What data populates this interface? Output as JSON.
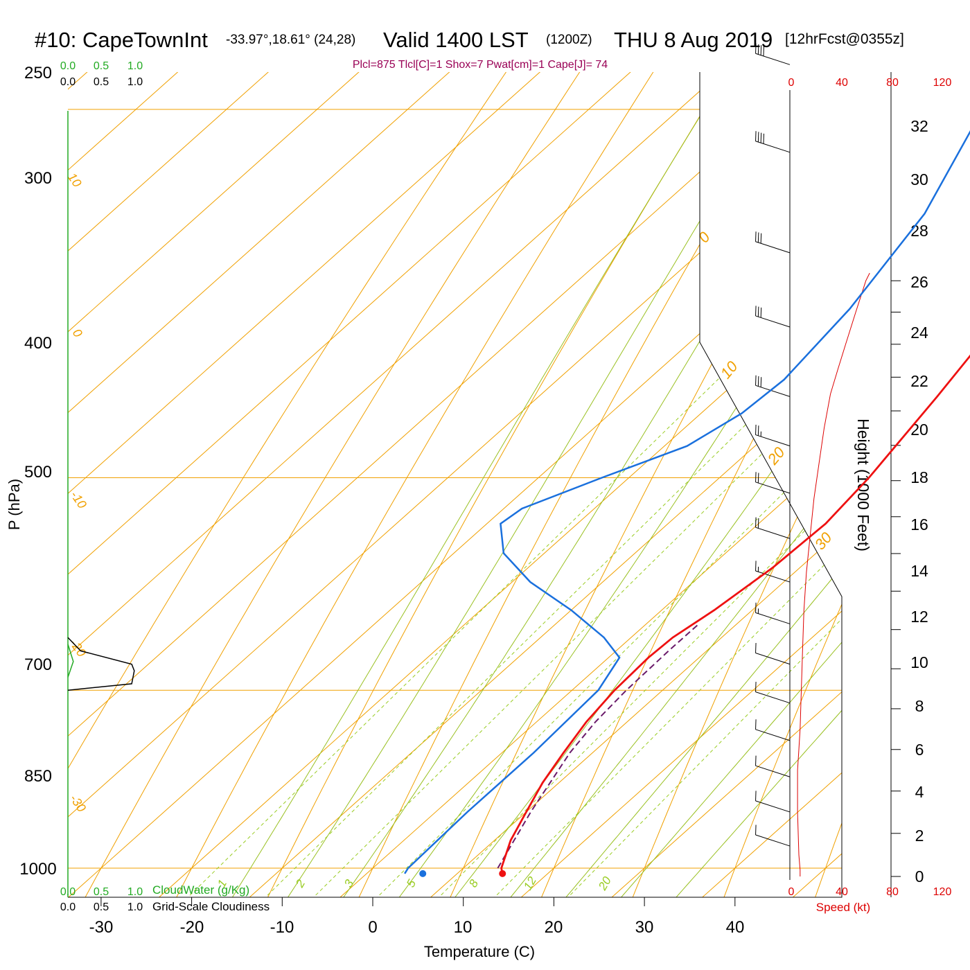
{
  "chart_data": {
    "type": "skew-t",
    "title": {
      "station": "#10: CapeTownInt",
      "coords": "-33.97°,18.61° (24,28)",
      "valid": "Valid 1400 LST",
      "utc": "(1200Z)",
      "date": "THU 8 Aug 2019",
      "forecast": "[12hrFcst@0355z]"
    },
    "indices": "Plcl=875 Tlcl[C]=1 Shox=7 Pwat[cm]=1 Cape[J]= 74",
    "xlabel": "Temperature (C)",
    "ylabel": "P (hPa)",
    "height_label": "Height (1000 Feet)",
    "speed_label": "Speed (kt)",
    "cloud_water_label": "CloudWater (g/Kg)",
    "cloudiness_label": "Grid-Scale Cloudiness",
    "pressure_ticks": [
      "250",
      "300",
      "400",
      "500",
      "700",
      "850",
      "1000"
    ],
    "temp_ticks": [
      "-30",
      "-20",
      "-10",
      "0",
      "10",
      "20",
      "30",
      "40"
    ],
    "height_ticks": [
      "0",
      "2",
      "4",
      "6",
      "8",
      "10",
      "12",
      "14",
      "16",
      "18",
      "20",
      "22",
      "24",
      "26",
      "28",
      "30",
      "32"
    ],
    "speed_ticks": [
      "0",
      "40",
      "80",
      "120"
    ],
    "cloud_ticks": [
      "0.0",
      "0.5",
      "1.0"
    ],
    "isotherm_labels": [
      "10",
      "0",
      "-10",
      "-20",
      "-30",
      "0",
      "10",
      "20",
      "30"
    ],
    "mixing_ratio_labels": [
      "1",
      "2",
      "3",
      "5",
      "8",
      "12",
      "20"
    ],
    "temperature_profile": [
      {
        "p": 1005,
        "t": 15.0
      },
      {
        "p": 1000,
        "t": 14.2
      },
      {
        "p": 975,
        "t": 11.8
      },
      {
        "p": 950,
        "t": 10.0
      },
      {
        "p": 925,
        "t": 8.2
      },
      {
        "p": 900,
        "t": 6.8
      },
      {
        "p": 875,
        "t": 5.5
      },
      {
        "p": 850,
        "t": 4.7
      },
      {
        "p": 825,
        "t": 4.4
      },
      {
        "p": 810,
        "t": 4.6
      },
      {
        "p": 790,
        "t": 5.8
      },
      {
        "p": 760,
        "t": 7.0
      },
      {
        "p": 730,
        "t": 7.4
      },
      {
        "p": 700,
        "t": 6.5
      },
      {
        "p": 650,
        "t": 4.0
      },
      {
        "p": 600,
        "t": 1.0
      },
      {
        "p": 550,
        "t": -2.5
      },
      {
        "p": 500,
        "t": -6.5
      },
      {
        "p": 450,
        "t": -12.5
      },
      {
        "p": 400,
        "t": -19.5
      },
      {
        "p": 350,
        "t": -27.5
      },
      {
        "p": 300,
        "t": -35.0
      },
      {
        "p": 270,
        "t": -40.0
      }
    ],
    "dewpoint_profile": [
      {
        "p": 1005,
        "t": 4.2
      },
      {
        "p": 1000,
        "t": 3.9
      },
      {
        "p": 950,
        "t": 3.5
      },
      {
        "p": 900,
        "t": 3.5
      },
      {
        "p": 850,
        "t": 2.9
      },
      {
        "p": 825,
        "t": 1.2
      },
      {
        "p": 810,
        "t": -3.0
      },
      {
        "p": 790,
        "t": -10.0
      },
      {
        "p": 770,
        "t": -18.0
      },
      {
        "p": 750,
        "t": -24.5
      },
      {
        "p": 730,
        "t": -28.5
      },
      {
        "p": 720,
        "t": -28.0
      },
      {
        "p": 700,
        "t": -23.0
      },
      {
        "p": 680,
        "t": -17.5
      },
      {
        "p": 660,
        "t": -15.5
      },
      {
        "p": 640,
        "t": -15.0
      },
      {
        "p": 600,
        "t": -16.5
      },
      {
        "p": 550,
        "t": -20.0
      },
      {
        "p": 500,
        "t": -26.5
      },
      {
        "p": 470,
        "t": -33.0
      },
      {
        "p": 420,
        "t": -44.0
      },
      {
        "p": 400,
        "t": -48.0
      },
      {
        "p": 370,
        "t": -53.0
      },
      {
        "p": 350,
        "t": -56.5
      },
      {
        "p": 330,
        "t": -57.0
      },
      {
        "p": 300,
        "t": -56.5
      },
      {
        "p": 280,
        "t": -56.0
      },
      {
        "p": 270,
        "t": -55.5
      }
    ],
    "parcel_profile": [
      {
        "p": 1000,
        "t": 13.8
      },
      {
        "p": 950,
        "t": 10.5
      },
      {
        "p": 900,
        "t": 7.5
      },
      {
        "p": 875,
        "t": 6.5
      },
      {
        "p": 850,
        "t": 6.0
      },
      {
        "p": 820,
        "t": 5.8
      },
      {
        "p": 800,
        "t": 5.8
      }
    ],
    "surface_temperature": {
      "p": 1005,
      "t": 15.0
    },
    "surface_dewpoint": {
      "p": 1005,
      "t": 6.2
    },
    "wind_speed_profile": [
      {
        "h": 0,
        "v": 7
      },
      {
        "h": 0.3,
        "v": 7
      },
      {
        "h": 1,
        "v": 6
      },
      {
        "h": 3,
        "v": 5
      },
      {
        "h": 5,
        "v": 5
      },
      {
        "h": 6,
        "v": 6
      },
      {
        "h": 7,
        "v": 7
      },
      {
        "h": 9,
        "v": 8
      },
      {
        "h": 11,
        "v": 9
      },
      {
        "h": 13,
        "v": 10
      },
      {
        "h": 15,
        "v": 12
      },
      {
        "h": 17,
        "v": 15
      },
      {
        "h": 19,
        "v": 18
      },
      {
        "h": 21,
        "v": 22
      },
      {
        "h": 23,
        "v": 26
      },
      {
        "h": 25,
        "v": 31
      },
      {
        "h": 26.5,
        "v": 37
      },
      {
        "h": 28,
        "v": 43
      },
      {
        "h": 30,
        "v": 51
      },
      {
        "h": 32,
        "v": 59
      },
      {
        "h": 32.5,
        "v": 62
      }
    ],
    "wind_barbs": [
      {
        "p": 255,
        "full": 0,
        "half": 0,
        "flags": 2
      },
      {
        "p": 280,
        "full": 0,
        "half": 0,
        "flags": 2
      },
      {
        "p": 300,
        "full": 3,
        "half": 0,
        "flags": 1
      },
      {
        "p": 320,
        "full": 3,
        "half": 0,
        "flags": 1
      },
      {
        "p": 345,
        "full": 2,
        "half": 0,
        "flags": 1
      },
      {
        "p": 370,
        "full": 1,
        "half": 0,
        "flags": 1
      },
      {
        "p": 400,
        "full": 1,
        "half": 0,
        "flags": 1
      },
      {
        "p": 440,
        "full": 0,
        "half": 0,
        "flags": 1
      },
      {
        "p": 480,
        "full": 4,
        "half": 0,
        "flags": 0
      },
      {
        "p": 520,
        "full": 4,
        "half": 0,
        "flags": 0
      },
      {
        "p": 570,
        "full": 3,
        "half": 0,
        "flags": 0
      },
      {
        "p": 610,
        "full": 3,
        "half": 0,
        "flags": 0
      },
      {
        "p": 650,
        "full": 3,
        "half": 0,
        "flags": 0
      },
      {
        "p": 680,
        "full": 2,
        "half": 1,
        "flags": 0
      },
      {
        "p": 710,
        "full": 2,
        "half": 0,
        "flags": 0
      },
      {
        "p": 740,
        "full": 2,
        "half": 0,
        "flags": 0
      },
      {
        "p": 770,
        "full": 1,
        "half": 1,
        "flags": 0
      },
      {
        "p": 800,
        "full": 1,
        "half": 1,
        "flags": 0
      },
      {
        "p": 830,
        "full": 1,
        "half": 0,
        "flags": 0
      },
      {
        "p": 860,
        "full": 1,
        "half": 0,
        "flags": 0
      },
      {
        "p": 890,
        "full": 1,
        "half": 0,
        "flags": 0
      },
      {
        "p": 920,
        "full": 1,
        "half": 0,
        "flags": 0
      },
      {
        "p": 950,
        "full": 1,
        "half": 0,
        "flags": 0
      },
      {
        "p": 980,
        "full": 1,
        "half": 0,
        "flags": 0
      }
    ],
    "cloudiness_profile": [
      {
        "p": 810,
        "c": 0.0
      },
      {
        "p": 820,
        "c": 0.1
      },
      {
        "p": 830,
        "c": 0.5
      },
      {
        "p": 835,
        "c": 0.52
      },
      {
        "p": 845,
        "c": 0.5
      },
      {
        "p": 850,
        "c": 0.0
      }
    ],
    "cloud_water_profile": [
      {
        "p": 815,
        "c": 0.0
      },
      {
        "p": 828,
        "c": 0.04
      },
      {
        "p": 840,
        "c": 0.0
      }
    ],
    "colors": {
      "temperature": "#ee1111",
      "dewpoint": "#1a70dd",
      "parcel": "#6a1a6a",
      "isotherm": "#f0a000",
      "adiabat": "#99c020",
      "mixing_ratio": "#99cc22",
      "indices": "#990055",
      "cloud_water": "#22aa22",
      "speed": "#dd0000"
    }
  }
}
